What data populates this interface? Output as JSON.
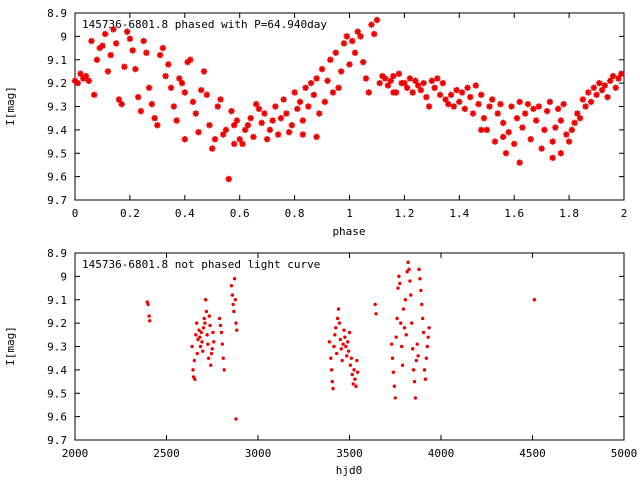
{
  "colors": {
    "points": "#ee0000",
    "axis": "#000000",
    "background": "#ffffff"
  },
  "chart_data": [
    {
      "type": "scatter",
      "title": "145736-6801.8 phased with P=64.940day",
      "xlabel": "phase",
      "ylabel": "I[mag]",
      "xlim": [
        0,
        2
      ],
      "ylim": [
        9.7,
        8.9
      ],
      "y_inverted": true,
      "grid": false,
      "legend": "none",
      "marker": "filled-asterisk",
      "xticks": [
        "0",
        "0.2",
        "0.4",
        "0.6",
        "0.8",
        "1",
        "1.2",
        "1.4",
        "1.6",
        "1.8",
        "2"
      ],
      "yticks": [
        "8.9",
        "9",
        "9.1",
        "9.2",
        "9.3",
        "9.4",
        "9.5",
        "9.6",
        "9.7"
      ],
      "points": [
        [
          0.0,
          9.19
        ],
        [
          0.01,
          9.2
        ],
        [
          0.02,
          9.16
        ],
        [
          0.03,
          9.18
        ],
        [
          0.04,
          9.17
        ],
        [
          0.05,
          9.19
        ],
        [
          0.06,
          9.02
        ],
        [
          0.07,
          9.25
        ],
        [
          0.08,
          9.1
        ],
        [
          0.09,
          9.05
        ],
        [
          0.1,
          9.04
        ],
        [
          0.11,
          8.99
        ],
        [
          0.12,
          9.15
        ],
        [
          0.13,
          9.08
        ],
        [
          0.14,
          8.97
        ],
        [
          0.15,
          9.03
        ],
        [
          0.16,
          9.27
        ],
        [
          0.17,
          9.29
        ],
        [
          0.18,
          9.13
        ],
        [
          0.19,
          8.98
        ],
        [
          0.2,
          9.01
        ],
        [
          0.21,
          9.06
        ],
        [
          0.22,
          9.14
        ],
        [
          0.23,
          9.26
        ],
        [
          0.24,
          9.32
        ],
        [
          0.25,
          9.02
        ],
        [
          0.26,
          9.07
        ],
        [
          0.27,
          9.22
        ],
        [
          0.28,
          9.29
        ],
        [
          0.29,
          9.35
        ],
        [
          0.3,
          9.38
        ],
        [
          0.31,
          9.08
        ],
        [
          0.32,
          9.05
        ],
        [
          0.33,
          9.17
        ],
        [
          0.34,
          9.12
        ],
        [
          0.35,
          9.22
        ],
        [
          0.36,
          9.3
        ],
        [
          0.37,
          9.36
        ],
        [
          0.38,
          9.18
        ],
        [
          0.39,
          9.2
        ],
        [
          0.4,
          9.24
        ],
        [
          0.41,
          9.11
        ],
        [
          0.42,
          9.1
        ],
        [
          0.43,
          9.28
        ],
        [
          0.44,
          9.33
        ],
        [
          0.45,
          9.41
        ],
        [
          0.46,
          9.23
        ],
        [
          0.47,
          9.15
        ],
        [
          0.48,
          9.25
        ],
        [
          0.49,
          9.38
        ],
        [
          0.5,
          9.48
        ],
        [
          0.51,
          9.44
        ],
        [
          0.52,
          9.3
        ],
        [
          0.53,
          9.27
        ],
        [
          0.54,
          9.42
        ],
        [
          0.55,
          9.4
        ],
        [
          0.56,
          9.61
        ],
        [
          0.57,
          9.32
        ],
        [
          0.58,
          9.38
        ],
        [
          0.59,
          9.36
        ],
        [
          0.6,
          9.44
        ],
        [
          0.61,
          9.46
        ],
        [
          0.62,
          9.4
        ],
        [
          0.63,
          9.38
        ],
        [
          0.64,
          9.35
        ],
        [
          0.65,
          9.43
        ],
        [
          0.66,
          9.29
        ],
        [
          0.67,
          9.31
        ],
        [
          0.68,
          9.37
        ],
        [
          0.69,
          9.33
        ],
        [
          0.7,
          9.44
        ],
        [
          0.71,
          9.4
        ],
        [
          0.72,
          9.36
        ],
        [
          0.73,
          9.3
        ],
        [
          0.74,
          9.42
        ],
        [
          0.75,
          9.35
        ],
        [
          0.76,
          9.27
        ],
        [
          0.77,
          9.33
        ],
        [
          0.78,
          9.41
        ],
        [
          0.79,
          9.38
        ],
        [
          0.8,
          9.24
        ],
        [
          0.81,
          9.31
        ],
        [
          0.82,
          9.28
        ],
        [
          0.83,
          9.36
        ],
        [
          0.84,
          9.22
        ],
        [
          0.85,
          9.3
        ],
        [
          0.86,
          9.2
        ],
        [
          0.87,
          9.25
        ],
        [
          0.88,
          9.18
        ],
        [
          0.89,
          9.33
        ],
        [
          0.9,
          9.14
        ],
        [
          0.91,
          9.28
        ],
        [
          0.92,
          9.19
        ],
        [
          0.93,
          9.1
        ],
        [
          0.94,
          9.24
        ],
        [
          0.95,
          9.07
        ],
        [
          0.96,
          9.22
        ],
        [
          0.97,
          9.15
        ],
        [
          0.98,
          9.03
        ],
        [
          0.99,
          9.0
        ],
        [
          1.0,
          9.12
        ],
        [
          1.01,
          9.02
        ],
        [
          1.02,
          9.07
        ],
        [
          1.03,
          8.98
        ],
        [
          1.04,
          9.0
        ],
        [
          1.05,
          9.11
        ],
        [
          1.06,
          9.18
        ],
        [
          1.07,
          9.24
        ],
        [
          1.08,
          8.95
        ],
        [
          1.09,
          8.99
        ],
        [
          1.1,
          8.93
        ],
        [
          1.11,
          9.2
        ],
        [
          1.12,
          9.17
        ],
        [
          1.13,
          9.18
        ],
        [
          1.14,
          9.21
        ],
        [
          1.15,
          9.19
        ],
        [
          1.16,
          9.17
        ],
        [
          1.17,
          9.24
        ],
        [
          1.18,
          9.16
        ],
        [
          1.19,
          9.2
        ],
        [
          1.2,
          9.2
        ],
        [
          1.21,
          9.22
        ],
        [
          1.22,
          9.18
        ],
        [
          1.23,
          9.24
        ],
        [
          1.24,
          9.19
        ],
        [
          1.25,
          9.21
        ],
        [
          1.26,
          9.23
        ],
        [
          1.27,
          9.2
        ],
        [
          1.28,
          9.26
        ],
        [
          1.29,
          9.3
        ],
        [
          1.3,
          9.19
        ],
        [
          1.31,
          9.22
        ],
        [
          1.32,
          9.18
        ],
        [
          1.33,
          9.25
        ],
        [
          1.34,
          9.2
        ],
        [
          1.35,
          9.27
        ],
        [
          1.36,
          9.29
        ],
        [
          1.37,
          9.25
        ],
        [
          1.38,
          9.3
        ],
        [
          1.39,
          9.23
        ],
        [
          1.4,
          9.28
        ],
        [
          1.41,
          9.24
        ],
        [
          1.42,
          9.31
        ],
        [
          1.43,
          9.22
        ],
        [
          1.44,
          9.26
        ],
        [
          1.45,
          9.33
        ],
        [
          1.46,
          9.21
        ],
        [
          1.47,
          9.29
        ],
        [
          1.48,
          9.25
        ],
        [
          1.49,
          9.35
        ],
        [
          1.5,
          9.4
        ],
        [
          1.51,
          9.3
        ],
        [
          1.52,
          9.27
        ],
        [
          1.53,
          9.45
        ],
        [
          1.54,
          9.33
        ],
        [
          1.55,
          9.29
        ],
        [
          1.56,
          9.37
        ],
        [
          1.57,
          9.5
        ],
        [
          1.58,
          9.41
        ],
        [
          1.59,
          9.3
        ],
        [
          1.6,
          9.46
        ],
        [
          1.61,
          9.35
        ],
        [
          1.62,
          9.28
        ],
        [
          1.63,
          9.39
        ],
        [
          1.64,
          9.33
        ],
        [
          1.65,
          9.29
        ],
        [
          1.66,
          9.44
        ],
        [
          1.67,
          9.31
        ],
        [
          1.68,
          9.36
        ],
        [
          1.69,
          9.3
        ],
        [
          1.7,
          9.48
        ],
        [
          1.71,
          9.4
        ],
        [
          1.72,
          9.32
        ],
        [
          1.73,
          9.28
        ],
        [
          1.74,
          9.45
        ],
        [
          1.75,
          9.39
        ],
        [
          1.76,
          9.31
        ],
        [
          1.77,
          9.36
        ],
        [
          1.78,
          9.29
        ],
        [
          1.79,
          9.42
        ],
        [
          1.8,
          9.45
        ],
        [
          1.81,
          9.4
        ],
        [
          1.82,
          9.37
        ],
        [
          1.83,
          9.33
        ],
        [
          1.84,
          9.35
        ],
        [
          1.85,
          9.27
        ],
        [
          1.86,
          9.3
        ],
        [
          1.87,
          9.24
        ],
        [
          1.88,
          9.28
        ],
        [
          1.89,
          9.22
        ],
        [
          1.9,
          9.25
        ],
        [
          1.91,
          9.2
        ],
        [
          1.92,
          9.23
        ],
        [
          1.93,
          9.21
        ],
        [
          1.94,
          9.26
        ],
        [
          1.95,
          9.19
        ],
        [
          1.96,
          9.17
        ],
        [
          1.97,
          9.22
        ],
        [
          1.98,
          9.18
        ],
        [
          1.99,
          9.16
        ],
        [
          0.4,
          9.44
        ],
        [
          0.58,
          9.46
        ],
        [
          0.88,
          9.43
        ],
        [
          0.83,
          9.42
        ],
        [
          1.16,
          9.24
        ],
        [
          1.48,
          9.4
        ],
        [
          1.62,
          9.54
        ],
        [
          1.56,
          9.43
        ],
        [
          1.74,
          9.52
        ],
        [
          1.77,
          9.5
        ]
      ]
    },
    {
      "type": "scatter",
      "title": "145736-6801.8 not phased light curve",
      "xlabel": "hjd0",
      "ylabel": "I[mag]",
      "xlim": [
        2000,
        5000
      ],
      "ylim": [
        9.7,
        8.9
      ],
      "y_inverted": true,
      "grid": false,
      "legend": "none",
      "marker": "dot",
      "xticks": [
        "2000",
        "2500",
        "3000",
        "3500",
        "4000",
        "4500",
        "5000"
      ],
      "yticks": [
        "8.9",
        "9",
        "9.1",
        "9.2",
        "9.3",
        "9.4",
        "9.5",
        "9.6",
        "9.7"
      ],
      "points": [
        [
          2395,
          9.11
        ],
        [
          2400,
          9.12
        ],
        [
          2405,
          9.17
        ],
        [
          2408,
          9.19
        ],
        [
          2640,
          9.3
        ],
        [
          2645,
          9.4
        ],
        [
          2648,
          9.43
        ],
        [
          2652,
          9.36
        ],
        [
          2655,
          9.44
        ],
        [
          2660,
          9.25
        ],
        [
          2665,
          9.2
        ],
        [
          2668,
          9.33
        ],
        [
          2672,
          9.27
        ],
        [
          2678,
          9.23
        ],
        [
          2682,
          9.26
        ],
        [
          2686,
          9.3
        ],
        [
          2690,
          9.24
        ],
        [
          2694,
          9.28
        ],
        [
          2698,
          9.32
        ],
        [
          2702,
          9.22
        ],
        [
          2706,
          9.18
        ],
        [
          2710,
          9.2
        ],
        [
          2714,
          9.1
        ],
        [
          2718,
          9.15
        ],
        [
          2722,
          9.25
        ],
        [
          2726,
          9.29
        ],
        [
          2730,
          9.35
        ],
        [
          2734,
          9.17
        ],
        [
          2738,
          9.21
        ],
        [
          2742,
          9.38
        ],
        [
          2746,
          9.33
        ],
        [
          2750,
          9.31
        ],
        [
          2754,
          9.24
        ],
        [
          2758,
          9.28
        ],
        [
          2790,
          9.18
        ],
        [
          2795,
          9.21
        ],
        [
          2800,
          9.24
        ],
        [
          2805,
          9.29
        ],
        [
          2810,
          9.35
        ],
        [
          2815,
          9.4
        ],
        [
          2855,
          9.04
        ],
        [
          2860,
          9.08
        ],
        [
          2864,
          9.12
        ],
        [
          2868,
          9.15
        ],
        [
          2872,
          9.01
        ],
        [
          2876,
          9.1
        ],
        [
          2880,
          9.2
        ],
        [
          2884,
          9.23
        ],
        [
          2880,
          9.61
        ],
        [
          3390,
          9.28
        ],
        [
          3398,
          9.35
        ],
        [
          3402,
          9.4
        ],
        [
          3406,
          9.45
        ],
        [
          3410,
          9.48
        ],
        [
          3415,
          9.3
        ],
        [
          3420,
          9.25
        ],
        [
          3425,
          9.22
        ],
        [
          3430,
          9.33
        ],
        [
          3435,
          9.18
        ],
        [
          3440,
          9.14
        ],
        [
          3445,
          9.2
        ],
        [
          3450,
          9.27
        ],
        [
          3455,
          9.31
        ],
        [
          3460,
          9.36
        ],
        [
          3465,
          9.29
        ],
        [
          3470,
          9.23
        ],
        [
          3475,
          9.26
        ],
        [
          3480,
          9.3
        ],
        [
          3485,
          9.34
        ],
        [
          3490,
          9.28
        ],
        [
          3495,
          9.32
        ],
        [
          3500,
          9.24
        ],
        [
          3505,
          9.38
        ],
        [
          3510,
          9.35
        ],
        [
          3515,
          9.42
        ],
        [
          3520,
          9.46
        ],
        [
          3525,
          9.4
        ],
        [
          3530,
          9.44
        ],
        [
          3535,
          9.47
        ],
        [
          3540,
          9.36
        ],
        [
          3545,
          9.41
        ],
        [
          3640,
          9.12
        ],
        [
          3645,
          9.16
        ],
        [
          3730,
          9.29
        ],
        [
          3735,
          9.35
        ],
        [
          3740,
          9.41
        ],
        [
          3745,
          9.47
        ],
        [
          3750,
          9.52
        ],
        [
          3755,
          9.26
        ],
        [
          3760,
          9.18
        ],
        [
          3765,
          9.05
        ],
        [
          3770,
          9.0
        ],
        [
          3775,
          9.03
        ],
        [
          3780,
          9.2
        ],
        [
          3785,
          9.3
        ],
        [
          3790,
          9.38
        ],
        [
          3795,
          9.14
        ],
        [
          3800,
          9.22
        ],
        [
          3805,
          9.1
        ],
        [
          3810,
          9.25
        ],
        [
          3815,
          8.98
        ],
        [
          3820,
          8.94
        ],
        [
          3825,
          8.97
        ],
        [
          3830,
          9.02
        ],
        [
          3835,
          9.08
        ],
        [
          3840,
          9.2
        ],
        [
          3845,
          9.31
        ],
        [
          3850,
          9.4
        ],
        [
          3855,
          9.45
        ],
        [
          3860,
          9.52
        ],
        [
          3865,
          9.36
        ],
        [
          3870,
          9.29
        ],
        [
          3875,
          9.34
        ],
        [
          3880,
          8.97
        ],
        [
          3885,
          9.01
        ],
        [
          3890,
          9.06
        ],
        [
          3895,
          9.12
        ],
        [
          3900,
          9.18
        ],
        [
          3905,
          9.24
        ],
        [
          3910,
          9.4
        ],
        [
          3915,
          9.44
        ],
        [
          3920,
          9.35
        ],
        [
          3925,
          9.3
        ],
        [
          3930,
          9.26
        ],
        [
          3935,
          9.22
        ],
        [
          4510,
          9.1
        ]
      ]
    }
  ]
}
